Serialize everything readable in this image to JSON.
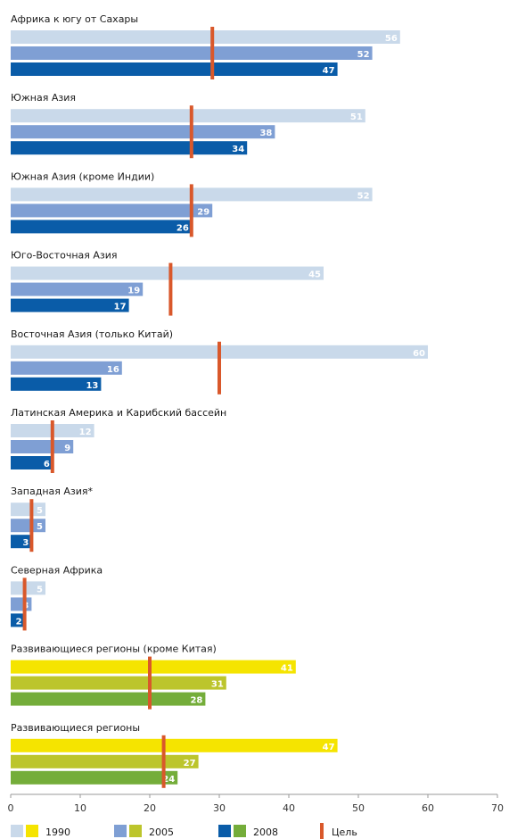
{
  "chart_data": {
    "type": "bar",
    "orientation": "horizontal",
    "xlim": [
      0,
      70
    ],
    "xticks": [
      0,
      10,
      20,
      30,
      40,
      50,
      60,
      70
    ],
    "series_names": [
      "1990",
      "2005",
      "2008"
    ],
    "target_label": "Цель",
    "groups": [
      {
        "label": "Африка к югу от Сахары",
        "palette": "blue",
        "values": [
          56,
          52,
          47
        ],
        "target": 29
      },
      {
        "label": "Южная Азия",
        "palette": "blue",
        "values": [
          51,
          38,
          34
        ],
        "target": 26
      },
      {
        "label": "Южная Азия (кроме Индии)",
        "palette": "blue",
        "values": [
          52,
          29,
          26
        ],
        "target": 26
      },
      {
        "label": "Юго-Восточная Азия",
        "palette": "blue",
        "values": [
          45,
          19,
          17
        ],
        "target": 23
      },
      {
        "label": "Восточная Азия (только Китай)",
        "palette": "blue",
        "values": [
          60,
          16,
          13
        ],
        "target": 30
      },
      {
        "label": "Латинская Америка и Карибский бассейн",
        "palette": "blue",
        "values": [
          12,
          9,
          6
        ],
        "target": 6
      },
      {
        "label": "Западная Азия*",
        "palette": "blue",
        "values": [
          5,
          5,
          3
        ],
        "target": 3
      },
      {
        "label": "Северная Африка",
        "palette": "blue",
        "values": [
          5,
          3,
          2
        ],
        "target": 2
      },
      {
        "label": "Развивающиеся регионы (кроме Китая)",
        "palette": "green",
        "values": [
          41,
          31,
          28
        ],
        "target": 20
      },
      {
        "label": "Развивающиеся регионы",
        "palette": "green",
        "values": [
          47,
          27,
          24
        ],
        "target": 22
      }
    ],
    "colors": {
      "blue": [
        "#c9d9ea",
        "#7f9fd4",
        "#0a5ca8"
      ],
      "green": [
        "#f5e400",
        "#bcc52c",
        "#74ad3a"
      ],
      "target": "#d9582b",
      "label_light": "#ffffff",
      "label_dark": "#ffffff"
    }
  }
}
